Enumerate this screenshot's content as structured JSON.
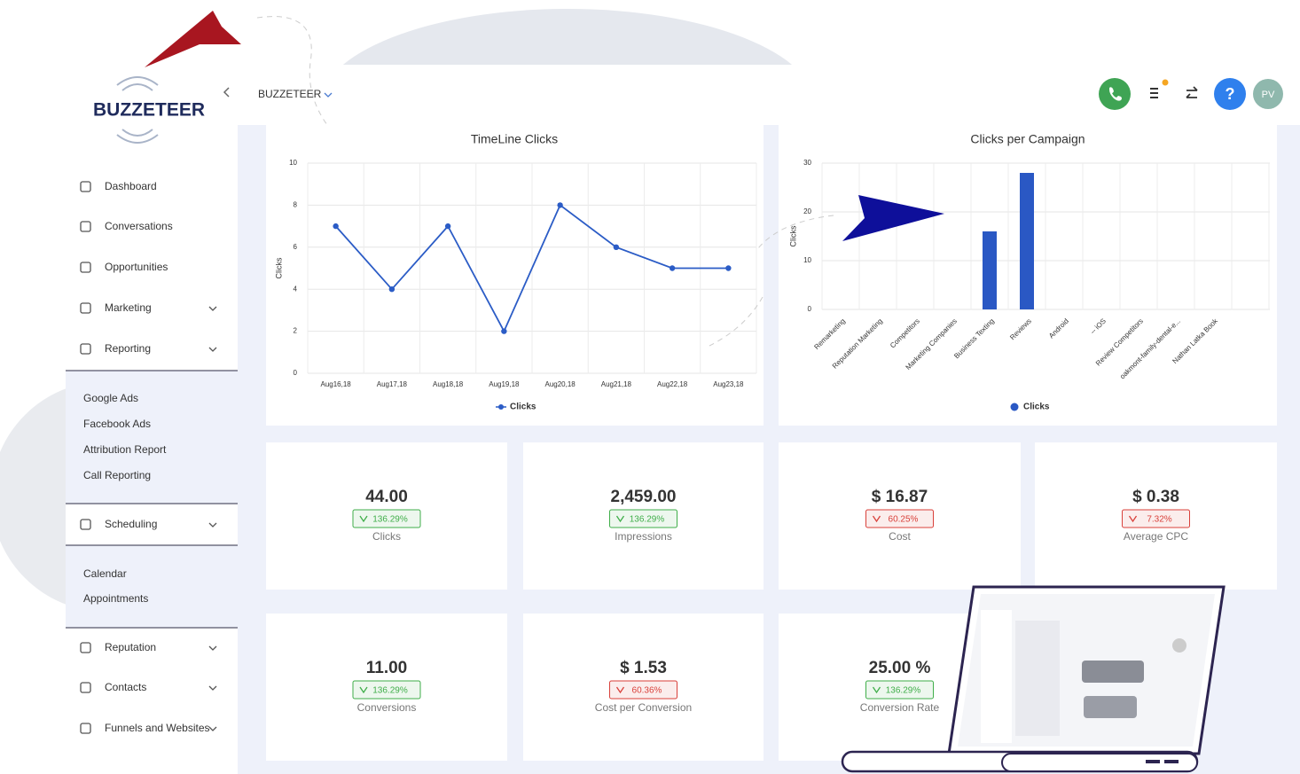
{
  "header": {
    "logo": "BUZZETEER",
    "account": "BUZZETEER",
    "avatar": "PV"
  },
  "sidebar": {
    "items": [
      {
        "label": "Dashboard"
      },
      {
        "label": "Conversations"
      },
      {
        "label": "Opportunities"
      },
      {
        "label": "Marketing",
        "expandable": true
      },
      {
        "label": "Reporting",
        "expandable": true,
        "children": [
          "Google Ads",
          "Facebook Ads",
          "Attribution Report",
          "Call Reporting"
        ]
      },
      {
        "label": "Scheduling",
        "expandable": true,
        "children": [
          "Calendar",
          "Appointments"
        ]
      },
      {
        "label": "Reputation",
        "expandable": true
      },
      {
        "label": "Contacts",
        "expandable": true
      },
      {
        "label": "Funnels and Websites",
        "expandable": true
      }
    ]
  },
  "chart_data": [
    {
      "type": "line",
      "title": "TimeLine Clicks",
      "y_label": "Clicks",
      "categories": [
        "Aug16,18",
        "Aug17,18",
        "Aug18,18",
        "Aug19,18",
        "Aug20,18",
        "Aug21,18",
        "Aug22,18",
        "Aug23,18"
      ],
      "series": [
        {
          "name": "Clicks",
          "color": "#2b5cc6",
          "values": [
            7,
            4,
            7,
            2,
            8,
            6,
            5,
            5
          ]
        }
      ],
      "ylim": [
        0,
        10
      ],
      "yticks": [
        0,
        2,
        4,
        6,
        8,
        10
      ],
      "grid": true,
      "legend": "bottom"
    },
    {
      "type": "bar",
      "title": "Clicks per Campaign",
      "y_label": "Clicks",
      "categories": [
        "Remarketing",
        "Reputation Marketing",
        "Competitors",
        "Marketing Companies",
        "Business Texting",
        "Reviews",
        "Android",
        "-- iOS",
        "Review Competitors",
        "oakmont-family-dental-e...",
        "Nathan Latka Book"
      ],
      "series": [
        {
          "name": "Clicks",
          "color": "#2a58c4",
          "values": [
            0,
            0,
            0,
            0,
            16,
            28,
            0,
            0,
            0,
            0,
            0
          ]
        }
      ],
      "ylim": [
        0,
        30
      ],
      "yticks": [
        0,
        10,
        20,
        30
      ],
      "grid": true,
      "legend": "bottom"
    }
  ],
  "stats": [
    {
      "value": "44.00",
      "change": "136.29%",
      "label": "Clicks",
      "color": "#3fae49"
    },
    {
      "value": "2,459.00",
      "change": "136.29%",
      "label": "Impressions",
      "color": "#3fae49"
    },
    {
      "value": "$ 16.87",
      "change": "60.25%",
      "label": "Cost",
      "color": "#d9403a"
    },
    {
      "value": "$ 0.38",
      "change": "7.32%",
      "label": "Average CPC",
      "color": "#d9403a"
    },
    {
      "value": "11.00",
      "change": "136.29%",
      "label": "Conversions",
      "color": "#3fae49"
    },
    {
      "value": "$ 1.53",
      "change": "60.36%",
      "label": "Cost per Conversion",
      "color": "#d9403a"
    },
    {
      "value": "25.00 %",
      "change": "136.29%",
      "label": "Conversion Rate",
      "color": "#3fae49"
    }
  ]
}
